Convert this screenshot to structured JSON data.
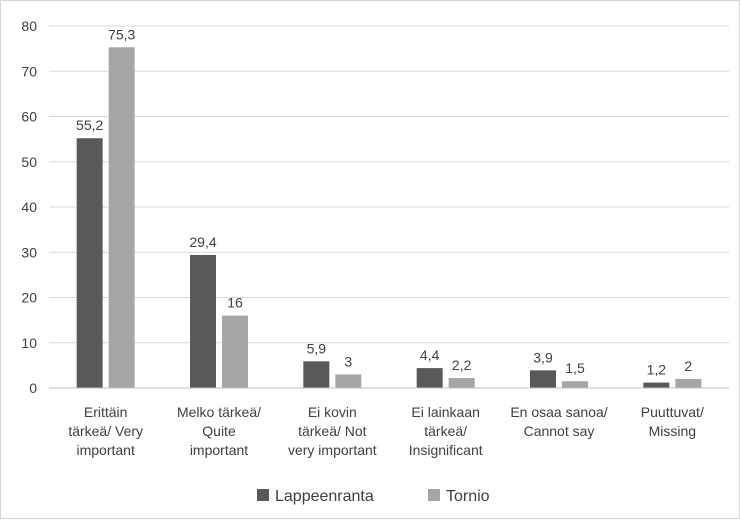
{
  "chart_data": {
    "type": "bar",
    "title": "",
    "xlabel": "",
    "ylabel": "",
    "ylim": [
      0,
      80
    ],
    "yticks": [
      0,
      10,
      20,
      30,
      40,
      50,
      60,
      70,
      80
    ],
    "grid": true,
    "legend_position": "bottom",
    "categories": [
      [
        "Erittäin",
        "tärkeä/ Very",
        "important"
      ],
      [
        "Melko tärkeä/",
        "Quite",
        "important"
      ],
      [
        "Ei kovin",
        "tärkeä/ Not",
        "very important"
      ],
      [
        "Ei lainkaan",
        "tärkeä/",
        "Insignificant"
      ],
      [
        "En osaa sanoa/",
        "Cannot say"
      ],
      [
        "Puuttuvat/",
        "Missing"
      ]
    ],
    "series": [
      {
        "name": "Lappeenranta",
        "color": "#595959",
        "values": [
          55.2,
          29.4,
          5.9,
          4.4,
          3.9,
          1.2
        ],
        "labels": [
          "55,2",
          "29,4",
          "5,9",
          "4,4",
          "3,9",
          "1,2"
        ]
      },
      {
        "name": "Tornio",
        "color": "#a6a6a6",
        "values": [
          75.3,
          16,
          3,
          2.2,
          1.5,
          2
        ],
        "labels": [
          "75,3",
          "16",
          "3",
          "2,2",
          "1,5",
          "2"
        ]
      }
    ]
  }
}
